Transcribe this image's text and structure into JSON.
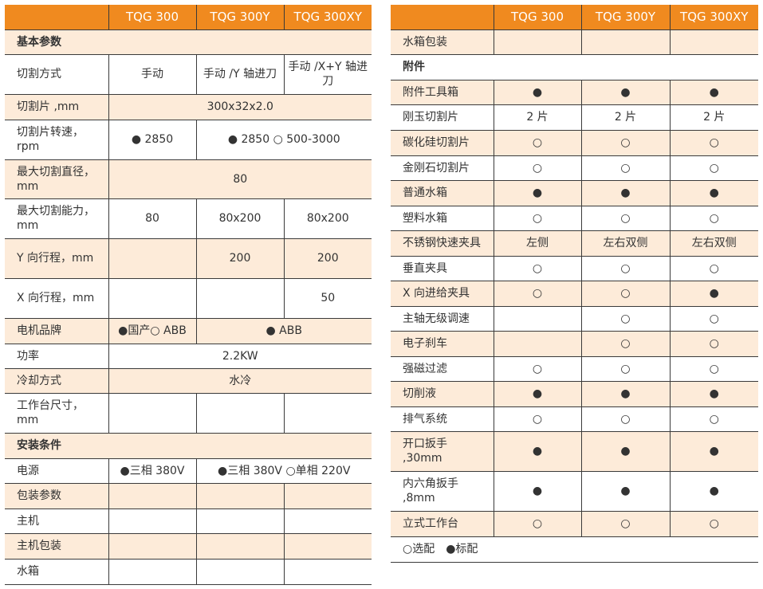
{
  "headers": [
    "",
    "TQG 300",
    "TQG 300Y",
    "TQG 300XY"
  ],
  "colors": {
    "header_bg": "#f08a1f",
    "shade_bg": "#fdebd9",
    "border": "#3a3a3a"
  },
  "left_rows": [
    {
      "label": "基本参数",
      "section": true,
      "shade": true,
      "cells": []
    },
    {
      "label": "切割方式",
      "cells": [
        {
          "text": "手动"
        },
        {
          "text": "手动 /Y 轴进刀"
        },
        {
          "text": "手动 /X+Y 轴进刀"
        }
      ]
    },
    {
      "label": "切割片 ,mm",
      "shade": true,
      "cells": [
        {
          "text": "300x32x2.0",
          "span": 3
        }
      ]
    },
    {
      "label": "切割片转速，rpm",
      "cells": [
        {
          "text": "● 2850"
        },
        {
          "text": "● 2850 ○ 500-3000",
          "span": 2
        }
      ]
    },
    {
      "label": "最大切割直径，mm",
      "shade": true,
      "cells": [
        {
          "text": "80",
          "span": 3
        }
      ]
    },
    {
      "label": "最大切割能力，mm",
      "cells": [
        {
          "text": "80"
        },
        {
          "text": "80x200"
        },
        {
          "text": "80x200"
        }
      ]
    },
    {
      "label": "Y 向行程，mm",
      "shade": true,
      "cells": [
        {
          "text": ""
        },
        {
          "text": "200"
        },
        {
          "text": "200"
        }
      ]
    },
    {
      "label": "X 向行程，mm",
      "cells": [
        {
          "text": ""
        },
        {
          "text": ""
        },
        {
          "text": "50"
        }
      ]
    },
    {
      "label": "电机品牌",
      "shade": true,
      "cells": [
        {
          "text": "●国产○ ABB"
        },
        {
          "text": "● ABB",
          "span": 2
        }
      ]
    },
    {
      "label": "功率",
      "cells": [
        {
          "text": "2.2KW",
          "span": 3
        }
      ]
    },
    {
      "label": "冷却方式",
      "shade": true,
      "cells": [
        {
          "text": "水冷",
          "span": 3
        }
      ]
    },
    {
      "label": "工作台尺寸，mm",
      "cells": [
        {
          "text": ""
        },
        {
          "text": ""
        },
        {
          "text": ""
        }
      ]
    },
    {
      "label": "安装条件",
      "section": true,
      "shade": true,
      "cells": []
    },
    {
      "label": "电源",
      "cells": [
        {
          "text": "●三相 380V"
        },
        {
          "text": "●三相 380V ○单相 220V",
          "span": 2
        }
      ]
    },
    {
      "label": "包装参数",
      "shade": true,
      "cells": [
        {
          "text": ""
        },
        {
          "text": ""
        },
        {
          "text": ""
        }
      ]
    },
    {
      "label": "主机",
      "cells": [
        {
          "text": ""
        },
        {
          "text": ""
        },
        {
          "text": ""
        }
      ]
    },
    {
      "label": "主机包装",
      "shade": true,
      "cells": [
        {
          "text": ""
        },
        {
          "text": ""
        },
        {
          "text": ""
        }
      ]
    },
    {
      "label": "水箱",
      "cells": [
        {
          "text": ""
        },
        {
          "text": ""
        },
        {
          "text": ""
        }
      ]
    }
  ],
  "right_rows": [
    {
      "label": "水箱包装",
      "shade": true,
      "cells": [
        {
          "text": ""
        },
        {
          "text": ""
        },
        {
          "text": ""
        }
      ]
    },
    {
      "label": "附件",
      "section": true,
      "cells": []
    },
    {
      "label": "附件工具箱",
      "shade": true,
      "cells": [
        {
          "text": "●"
        },
        {
          "text": "●"
        },
        {
          "text": "●"
        }
      ]
    },
    {
      "label": "刚玉切割片",
      "cells": [
        {
          "text": "2 片"
        },
        {
          "text": "2 片"
        },
        {
          "text": "2 片"
        }
      ]
    },
    {
      "label": "碳化硅切割片",
      "shade": true,
      "cells": [
        {
          "text": "○"
        },
        {
          "text": "○"
        },
        {
          "text": "○"
        }
      ]
    },
    {
      "label": "金刚石切割片",
      "cells": [
        {
          "text": "○"
        },
        {
          "text": "○"
        },
        {
          "text": "○"
        }
      ]
    },
    {
      "label": "普通水箱",
      "shade": true,
      "cells": [
        {
          "text": "●"
        },
        {
          "text": "●"
        },
        {
          "text": "●"
        }
      ]
    },
    {
      "label": "塑料水箱",
      "cells": [
        {
          "text": "○"
        },
        {
          "text": "○"
        },
        {
          "text": "○"
        }
      ]
    },
    {
      "label": "不锈钢快速夹具",
      "shade": true,
      "cells": [
        {
          "text": "左侧"
        },
        {
          "text": "左右双侧"
        },
        {
          "text": "左右双侧"
        }
      ]
    },
    {
      "label": "垂直夹具",
      "cells": [
        {
          "text": "○"
        },
        {
          "text": "○"
        },
        {
          "text": "○"
        }
      ]
    },
    {
      "label": "X 向进给夹具",
      "shade": true,
      "cells": [
        {
          "text": "○"
        },
        {
          "text": "○"
        },
        {
          "text": "●"
        }
      ]
    },
    {
      "label": "主轴无级调速",
      "cells": [
        {
          "text": ""
        },
        {
          "text": "○"
        },
        {
          "text": "○"
        }
      ]
    },
    {
      "label": "电子刹车",
      "shade": true,
      "cells": [
        {
          "text": ""
        },
        {
          "text": "○"
        },
        {
          "text": "○"
        }
      ]
    },
    {
      "label": "强磁过滤",
      "cells": [
        {
          "text": "○"
        },
        {
          "text": "○"
        },
        {
          "text": "○"
        }
      ]
    },
    {
      "label": "切削液",
      "shade": true,
      "cells": [
        {
          "text": "●"
        },
        {
          "text": "●"
        },
        {
          "text": "●"
        }
      ]
    },
    {
      "label": "排气系统",
      "cells": [
        {
          "text": "○"
        },
        {
          "text": "○"
        },
        {
          "text": "○"
        }
      ]
    },
    {
      "label": "开口扳手 ,30mm",
      "shade": true,
      "cells": [
        {
          "text": "●"
        },
        {
          "text": "●"
        },
        {
          "text": "●"
        }
      ]
    },
    {
      "label": "内六角扳手 ,8mm",
      "cells": [
        {
          "text": "●"
        },
        {
          "text": "●"
        },
        {
          "text": "●"
        }
      ]
    },
    {
      "label": "立式工作台",
      "shade": true,
      "cells": [
        {
          "text": "○"
        },
        {
          "text": "○"
        },
        {
          "text": "○"
        }
      ]
    }
  ],
  "legend": "○选配　●标配"
}
